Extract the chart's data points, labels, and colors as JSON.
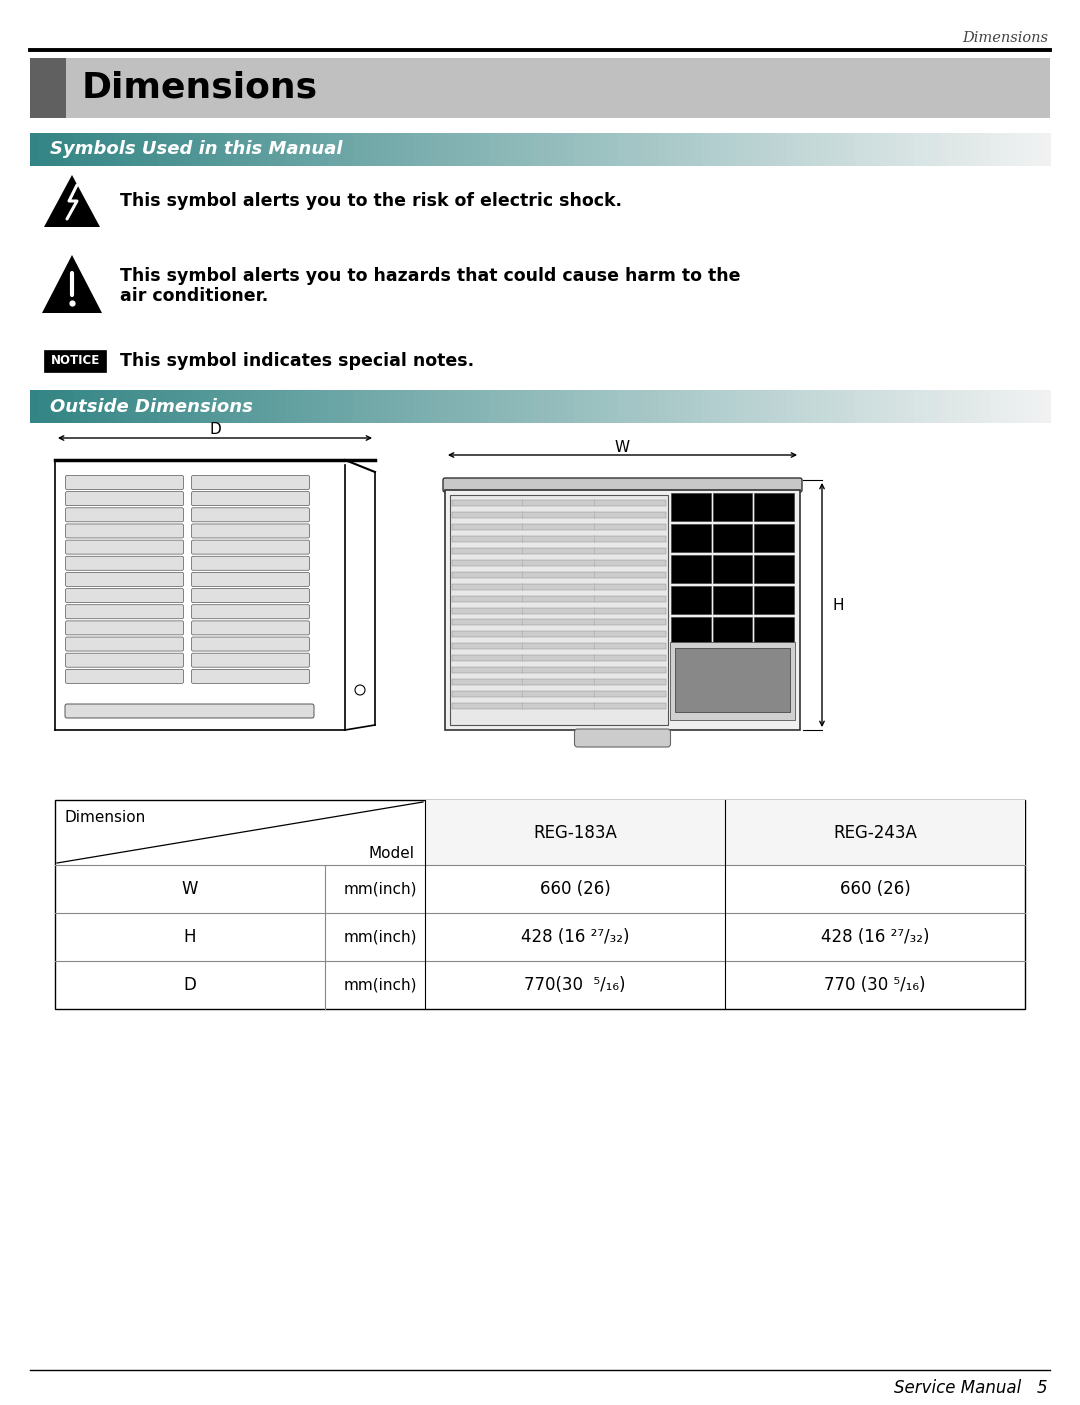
{
  "page_title": "Dimensions",
  "header_title": "Dimensions",
  "section1_title": "Symbols Used in this Manual",
  "section2_title": "Outside Dimensions",
  "symbol1_text": "This symbol alerts you to the risk of electric shock.",
  "symbol2_text1": "This symbol alerts you to hazards that could cause harm to the",
  "symbol2_text2": "air conditioner.",
  "symbol3_text": "This symbol indicates special notes.",
  "table_rows": [
    [
      "W",
      "mm(inch)",
      "660 (26)",
      "660 (26)"
    ],
    [
      "H",
      "mm(inch)",
      "428 (16 ²⁷/₃₂)",
      "428 (16 ²⁷/₃₂)"
    ],
    [
      "D",
      "mm(inch)",
      "770(30  ⁵/₁₆)",
      "770 (30 ⁵/₁₆)"
    ]
  ],
  "footer_text": "Service Manual   5",
  "bg_color": "#ffffff"
}
